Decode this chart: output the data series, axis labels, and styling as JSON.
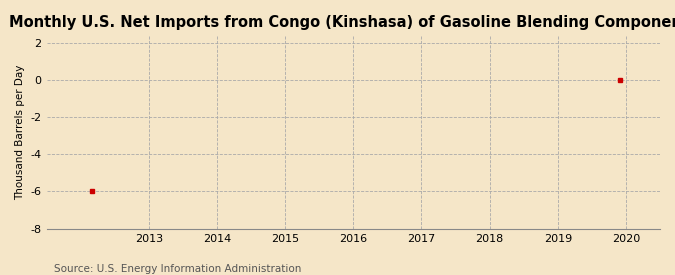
{
  "title": "Monthly U.S. Net Imports from Congo (Kinshasa) of Gasoline Blending Components",
  "ylabel": "Thousand Barrels per Day",
  "source": "Source: U.S. Energy Information Administration",
  "background_color": "#F5E6C8",
  "plot_bg_color": "#F5E6C8",
  "data_x": [
    2012.17,
    2019.92
  ],
  "data_y": [
    -6.0,
    0.0
  ],
  "marker_color": "#CC0000",
  "marker": "s",
  "marker_size": 3.5,
  "xlim": [
    2011.5,
    2020.5
  ],
  "ylim": [
    -8,
    2.4
  ],
  "yticks": [
    -8,
    -6,
    -4,
    -2,
    0,
    2
  ],
  "xticks": [
    2013,
    2014,
    2015,
    2016,
    2017,
    2018,
    2019,
    2020
  ],
  "grid_color": "#AAAAAA",
  "grid_style": "--",
  "title_fontsize": 10.5,
  "label_fontsize": 7.5,
  "tick_fontsize": 8,
  "source_fontsize": 7.5
}
